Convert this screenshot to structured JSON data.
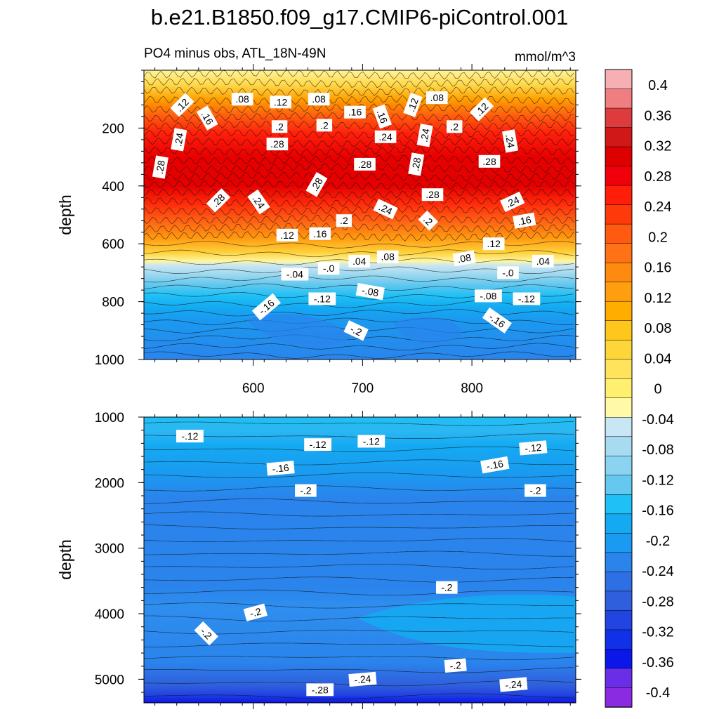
{
  "title": "b.e21.B1850.f09_g17.CMIP6-piControl.001",
  "subtitle_left": "PO4 minus obs, ATL_18N-49N",
  "subtitle_right": "mmol/m^3",
  "colors": {
    "scale": [
      "#8a2be2",
      "#6a2ee8",
      "#0b16e8",
      "#1131e8",
      "#2244e0",
      "#2f5fdc",
      "#2e6fe4",
      "#2a84ec",
      "#1a9af0",
      "#14aaf2",
      "#1ec0f5",
      "#64c8ef",
      "#8ad4f2",
      "#a7dbef",
      "#c8e6f4",
      "#fff9a8",
      "#fff070",
      "#ffe35c",
      "#ffd63a",
      "#ffc61c",
      "#ffae00",
      "#ff9e0e",
      "#ff8a10",
      "#ff7216",
      "#ff5a0f",
      "#ff3a0a",
      "#ff1e0a",
      "#f0000a",
      "#de0000",
      "#d01818",
      "#de3c3c",
      "#ef7e80",
      "#f6b0b4"
    ]
  },
  "chart_data": [
    {
      "type": "contour",
      "name": "upper-panel",
      "xlabel": "",
      "ylabel": "depth",
      "xlim": [
        500,
        895
      ],
      "ylim": [
        1000,
        0
      ],
      "xticks": [
        600,
        700,
        800
      ],
      "xtick_labels": [
        "600",
        "700",
        "800"
      ],
      "yticks": [
        200,
        400,
        600,
        800,
        1000
      ],
      "ytick_labels": [
        "200",
        "400",
        "600",
        "800",
        "1000"
      ],
      "contour_labels": [
        {
          "text": ".12",
          "x": 535,
          "y": 120,
          "rot": -45
        },
        {
          "text": ".08",
          "x": 590,
          "y": 100,
          "rot": 0
        },
        {
          "text": ".12",
          "x": 625,
          "y": 110,
          "rot": 0
        },
        {
          "text": ".08",
          "x": 660,
          "y": 100,
          "rot": 0
        },
        {
          "text": ".16",
          "x": 558,
          "y": 165,
          "rot": 60
        },
        {
          "text": ".2",
          "x": 624,
          "y": 195,
          "rot": 0
        },
        {
          "text": ".2",
          "x": 665,
          "y": 190,
          "rot": 0
        },
        {
          "text": ".16",
          "x": 693,
          "y": 145,
          "rot": 0
        },
        {
          "text": ".16",
          "x": 718,
          "y": 160,
          "rot": 70
        },
        {
          "text": ".12",
          "x": 746,
          "y": 120,
          "rot": -70
        },
        {
          "text": ".08",
          "x": 768,
          "y": 95,
          "rot": 0
        },
        {
          "text": ".2",
          "x": 784,
          "y": 195,
          "rot": 0
        },
        {
          "text": ".12",
          "x": 809,
          "y": 135,
          "rot": -45
        },
        {
          "text": ".24",
          "x": 532,
          "y": 240,
          "rot": -80
        },
        {
          "text": ".28",
          "x": 515,
          "y": 335,
          "rot": -80
        },
        {
          "text": ".28",
          "x": 622,
          "y": 255,
          "rot": 0
        },
        {
          "text": ".24",
          "x": 721,
          "y": 230,
          "rot": 0
        },
        {
          "text": ".24",
          "x": 757,
          "y": 225,
          "rot": -80
        },
        {
          "text": ".24",
          "x": 835,
          "y": 245,
          "rot": 80
        },
        {
          "text": ".28",
          "x": 702,
          "y": 325,
          "rot": 0
        },
        {
          "text": ".28",
          "x": 749,
          "y": 325,
          "rot": -80
        },
        {
          "text": ".28",
          "x": 816,
          "y": 315,
          "rot": 0
        },
        {
          "text": ".28",
          "x": 568,
          "y": 450,
          "rot": -45
        },
        {
          "text": ".24",
          "x": 605,
          "y": 455,
          "rot": 55
        },
        {
          "text": ".28",
          "x": 658,
          "y": 395,
          "rot": -60
        },
        {
          "text": ".28",
          "x": 764,
          "y": 430,
          "rot": 0
        },
        {
          "text": ".24",
          "x": 721,
          "y": 480,
          "rot": 25
        },
        {
          "text": ".24",
          "x": 837,
          "y": 455,
          "rot": -25
        },
        {
          "text": ".2",
          "x": 683,
          "y": 520,
          "rot": 0
        },
        {
          "text": ".2",
          "x": 760,
          "y": 520,
          "rot": 45
        },
        {
          "text": ".16",
          "x": 848,
          "y": 520,
          "rot": -10
        },
        {
          "text": ".12",
          "x": 631,
          "y": 570,
          "rot": 0
        },
        {
          "text": ".16",
          "x": 661,
          "y": 565,
          "rot": 0
        },
        {
          "text": ".12",
          "x": 820,
          "y": 600,
          "rot": 0
        },
        {
          "text": ".04",
          "x": 697,
          "y": 660,
          "rot": 0
        },
        {
          "text": ".08",
          "x": 723,
          "y": 645,
          "rot": 0
        },
        {
          "text": ".08",
          "x": 793,
          "y": 650,
          "rot": -10
        },
        {
          "text": ".04",
          "x": 865,
          "y": 660,
          "rot": 0
        },
        {
          "text": "-.0",
          "x": 669,
          "y": 685,
          "rot": 0
        },
        {
          "text": "-.04",
          "x": 638,
          "y": 705,
          "rot": 0
        },
        {
          "text": "-.0",
          "x": 833,
          "y": 700,
          "rot": 0
        },
        {
          "text": "-.08",
          "x": 707,
          "y": 765,
          "rot": 10
        },
        {
          "text": "-.08",
          "x": 815,
          "y": 780,
          "rot": 0
        },
        {
          "text": "-.12",
          "x": 663,
          "y": 790,
          "rot": 0
        },
        {
          "text": "-.12",
          "x": 850,
          "y": 790,
          "rot": 0
        },
        {
          "text": "-.16",
          "x": 612,
          "y": 818,
          "rot": -40
        },
        {
          "text": "-.16",
          "x": 823,
          "y": 865,
          "rot": 35
        },
        {
          "text": "-.2",
          "x": 694,
          "y": 900,
          "rot": 25
        }
      ]
    },
    {
      "type": "contour",
      "name": "lower-panel",
      "xlabel": "",
      "ylabel": "depth",
      "xlim": [
        500,
        895
      ],
      "ylim": [
        5360,
        1000
      ],
      "xticks": [
        600,
        700,
        800
      ],
      "xtick_labels": [],
      "yticks": [
        1000,
        2000,
        3000,
        4000,
        5000
      ],
      "ytick_labels": [
        "1000",
        "2000",
        "3000",
        "4000",
        "5000"
      ],
      "contour_labels": [
        {
          "text": "-.12",
          "x": 542,
          "y": 1290,
          "rot": 0
        },
        {
          "text": "-.12",
          "x": 659,
          "y": 1420,
          "rot": 0
        },
        {
          "text": "-.12",
          "x": 708,
          "y": 1370,
          "rot": 0
        },
        {
          "text": "-.12",
          "x": 856,
          "y": 1470,
          "rot": -5
        },
        {
          "text": "-.16",
          "x": 625,
          "y": 1780,
          "rot": -5
        },
        {
          "text": "-.16",
          "x": 821,
          "y": 1730,
          "rot": -10
        },
        {
          "text": "-.2",
          "x": 648,
          "y": 2120,
          "rot": 0
        },
        {
          "text": "-.2",
          "x": 858,
          "y": 2120,
          "rot": 0
        },
        {
          "text": "-.2",
          "x": 777,
          "y": 3600,
          "rot": 0
        },
        {
          "text": "-.2",
          "x": 602,
          "y": 3980,
          "rot": -15
        },
        {
          "text": "-.2",
          "x": 557,
          "y": 4300,
          "rot": 45
        },
        {
          "text": "-.2",
          "x": 785,
          "y": 4790,
          "rot": -5
        },
        {
          "text": "-.24",
          "x": 700,
          "y": 5000,
          "rot": -5
        },
        {
          "text": "-.24",
          "x": 838,
          "y": 5080,
          "rot": -5
        },
        {
          "text": "-.28",
          "x": 661,
          "y": 5160,
          "rot": 0
        }
      ]
    },
    {
      "type": "colorbar",
      "name": "colorbar",
      "labels": [
        "0.4",
        "0.36",
        "0.32",
        "0.28",
        "0.24",
        "0.2",
        "0.16",
        "0.12",
        "0.08",
        "0.04",
        "0",
        "-0.04",
        "-0.08",
        "-0.12",
        "-0.16",
        "-0.2",
        "-0.24",
        "-0.28",
        "-0.32",
        "-0.36",
        "-0.4"
      ],
      "range": [
        -0.4,
        0.4
      ],
      "bins": 33
    }
  ]
}
